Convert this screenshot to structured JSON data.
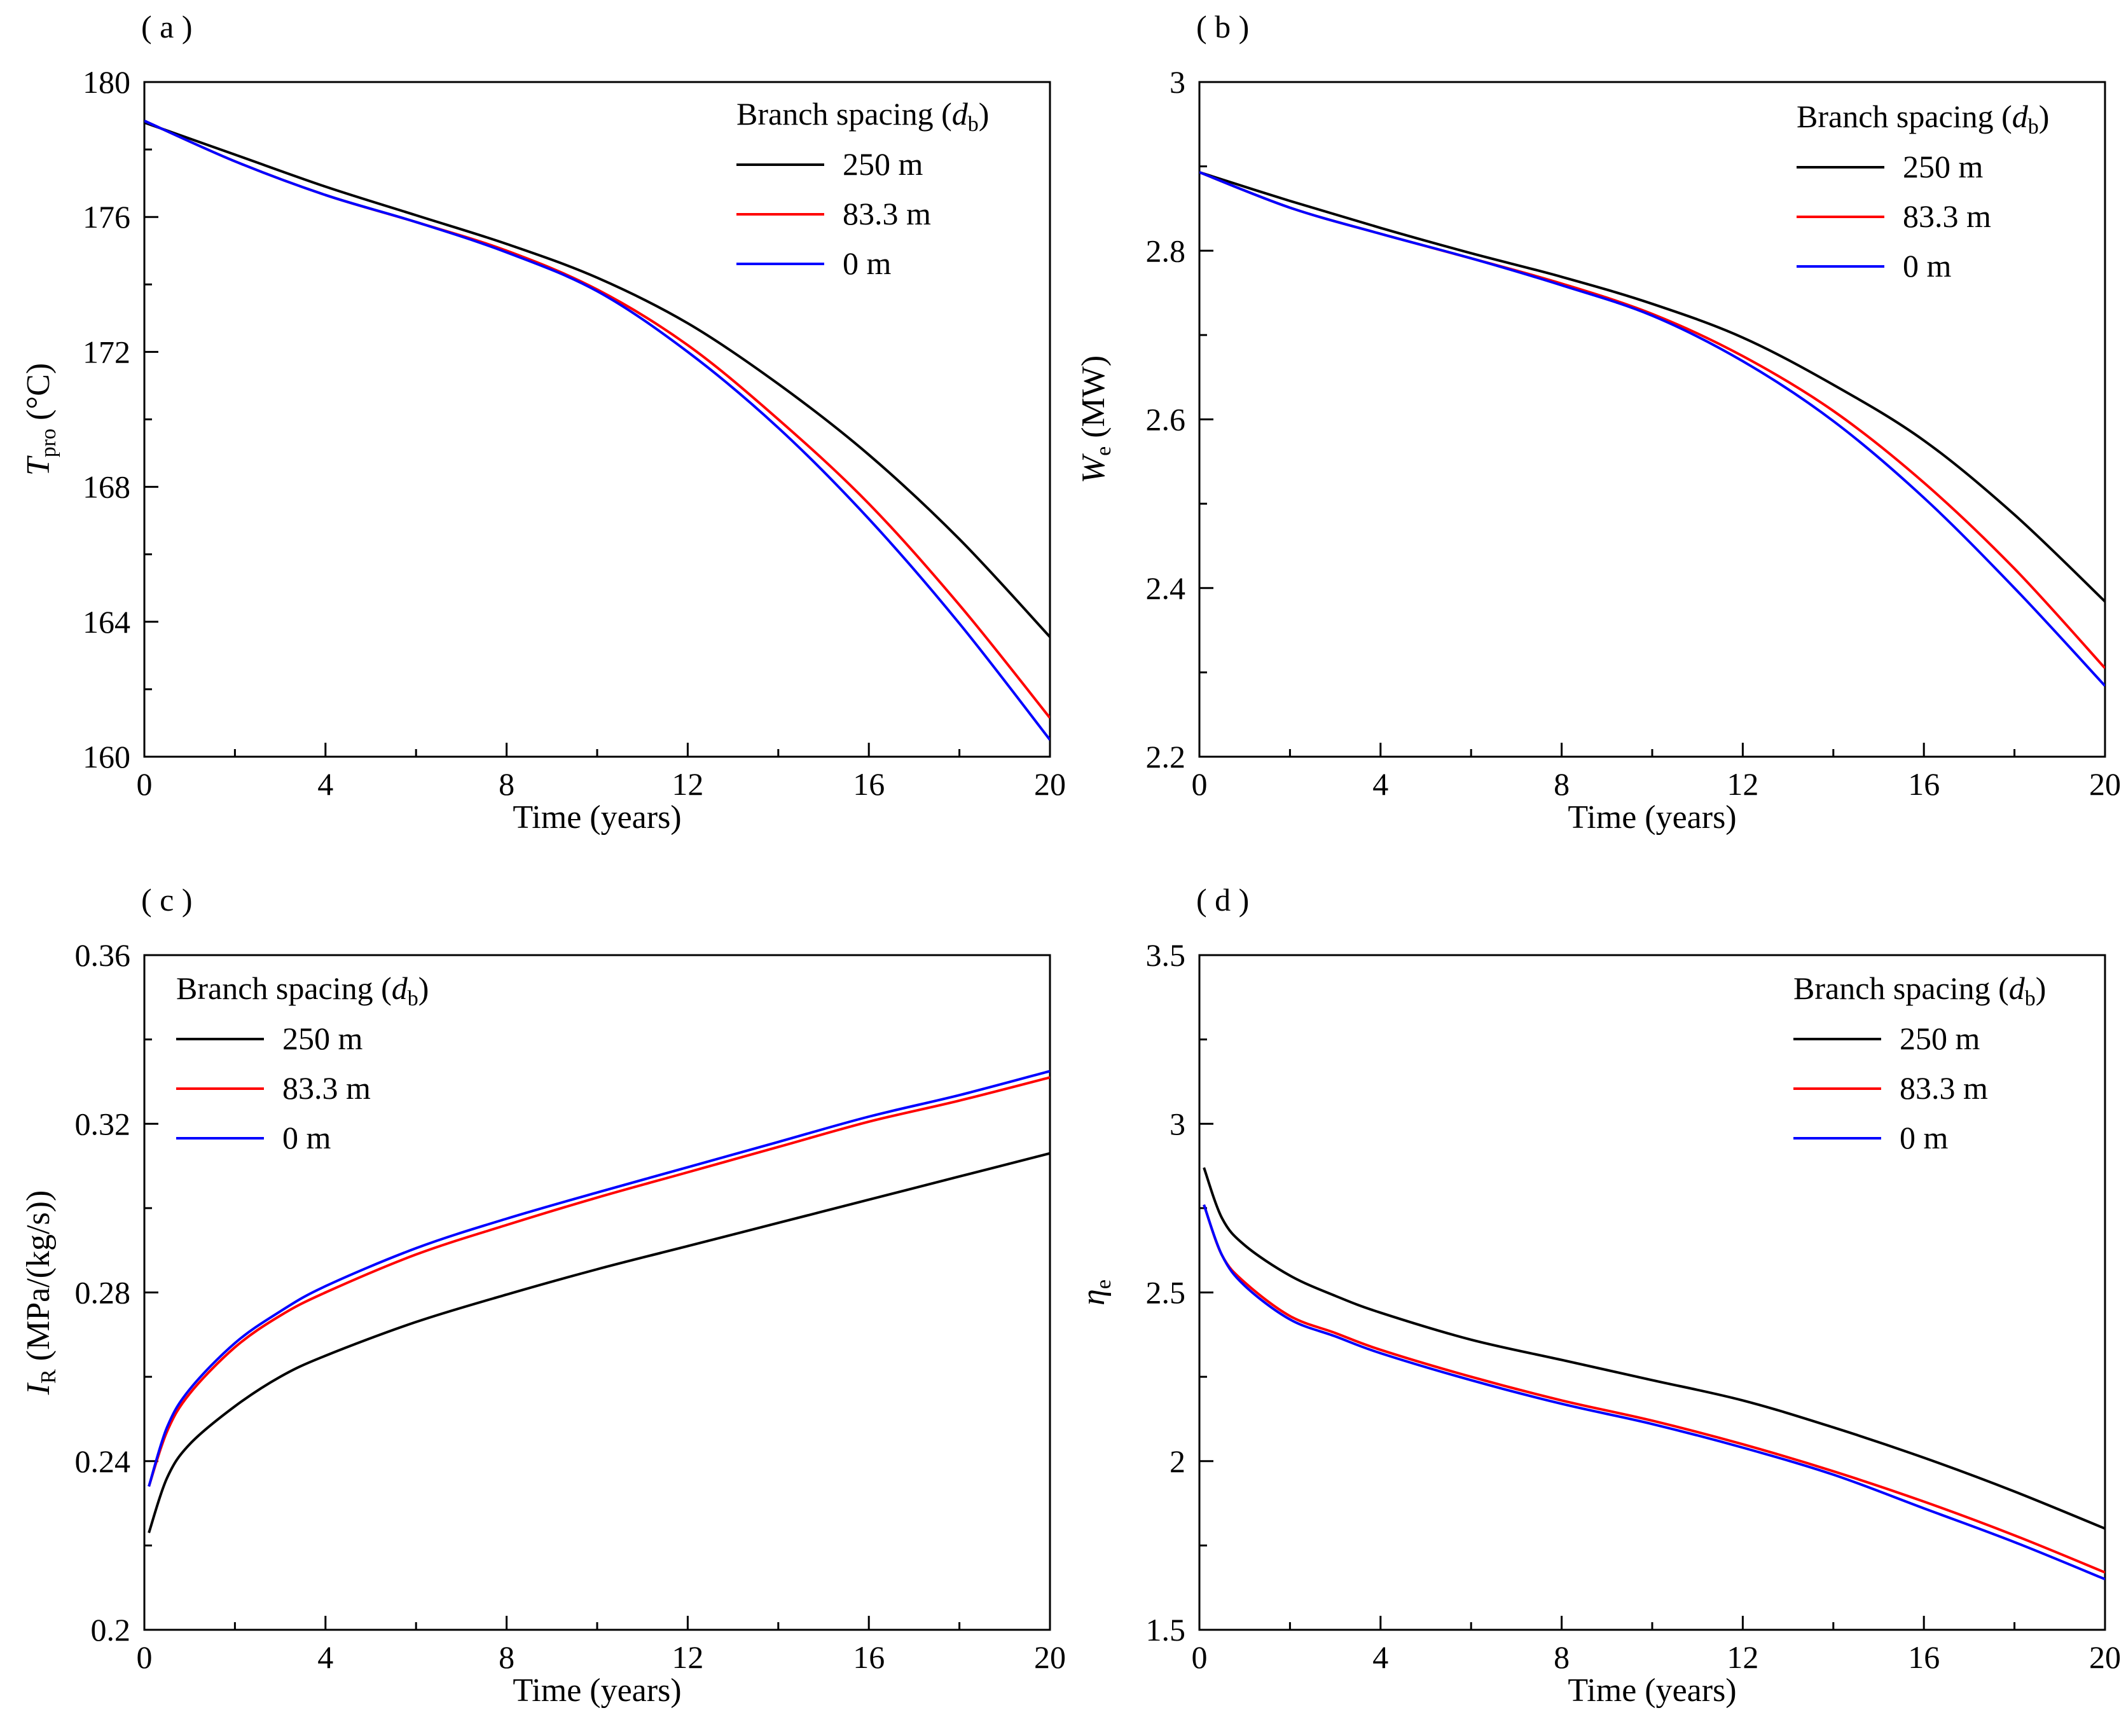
{
  "chart_data": [
    {
      "type": "line",
      "panel_label": "( a )",
      "xlabel": "Time (years)",
      "ylabel": {
        "main": "T",
        "sub": "pro",
        "unit": " (°C)"
      },
      "xlim": [
        0,
        20
      ],
      "ylim": [
        160,
        180
      ],
      "xticks": [
        0,
        4,
        8,
        12,
        16,
        20
      ],
      "xtick_labels": [
        "0",
        "4",
        "8",
        "12",
        "16",
        "20"
      ],
      "yticks": [
        160,
        164,
        168,
        172,
        176,
        180
      ],
      "ytick_labels": [
        "160",
        "164",
        "168",
        "172",
        "176",
        "180"
      ],
      "legend": {
        "title": "Branch spacing (",
        "title_var": "d",
        "title_sub": "b",
        "title_close": ")",
        "position": "top-right"
      },
      "series": [
        {
          "name": "250 m",
          "color": "#000000",
          "x": [
            0,
            2,
            4,
            6,
            8,
            10,
            12,
            14,
            16,
            18,
            20
          ],
          "y": [
            178.8,
            177.85,
            176.9,
            176.05,
            175.2,
            174.2,
            172.85,
            171.05,
            168.95,
            166.45,
            163.55
          ]
        },
        {
          "name": "83.3 m",
          "color": "#ff0000",
          "x": [
            0,
            2,
            4,
            6,
            8,
            10,
            12,
            14,
            16,
            18,
            20
          ],
          "y": [
            178.85,
            177.65,
            176.65,
            175.85,
            175.0,
            173.85,
            172.2,
            170.0,
            167.5,
            164.5,
            161.15
          ]
        },
        {
          "name": "0 m",
          "color": "#0000ff",
          "x": [
            0,
            2,
            4,
            6,
            8,
            10,
            12,
            14,
            16,
            18,
            20
          ],
          "y": [
            178.85,
            177.65,
            176.65,
            175.85,
            174.95,
            173.8,
            172.0,
            169.75,
            167.05,
            163.95,
            160.5
          ]
        }
      ]
    },
    {
      "type": "line",
      "panel_label": "( b )",
      "xlabel": "Time (years)",
      "ylabel": {
        "main": "W",
        "sub": "e",
        "unit": " (MW)"
      },
      "xlim": [
        0,
        20
      ],
      "ylim": [
        2.2,
        3.0
      ],
      "xticks": [
        0,
        4,
        8,
        12,
        16,
        20
      ],
      "xtick_labels": [
        "0",
        "4",
        "8",
        "12",
        "16",
        "20"
      ],
      "yticks": [
        2.2,
        2.4,
        2.6,
        2.8,
        3.0
      ],
      "ytick_labels": [
        "2.2",
        "2.4",
        "2.6",
        "2.8",
        "3"
      ],
      "legend": {
        "title": "Branch spacing (",
        "title_var": "d",
        "title_sub": "b",
        "title_close": ")",
        "position": "top-right"
      },
      "series": [
        {
          "name": "250 m",
          "color": "#000000",
          "x": [
            0,
            2,
            4,
            6,
            8,
            10,
            12,
            14,
            16,
            18,
            20
          ],
          "y": [
            2.893,
            2.859,
            2.827,
            2.797,
            2.769,
            2.737,
            2.697,
            2.641,
            2.575,
            2.487,
            2.384
          ]
        },
        {
          "name": "83.3 m",
          "color": "#ff0000",
          "x": [
            0,
            2,
            4,
            6,
            8,
            10,
            12,
            14,
            16,
            18,
            20
          ],
          "y": [
            2.893,
            2.851,
            2.82,
            2.791,
            2.761,
            2.725,
            2.675,
            2.61,
            2.525,
            2.423,
            2.305
          ]
        },
        {
          "name": "0 m",
          "color": "#0000ff",
          "x": [
            0,
            2,
            4,
            6,
            8,
            10,
            12,
            14,
            16,
            18,
            20
          ],
          "y": [
            2.893,
            2.851,
            2.82,
            2.791,
            2.759,
            2.723,
            2.669,
            2.598,
            2.507,
            2.4,
            2.284
          ]
        }
      ]
    },
    {
      "type": "line",
      "panel_label": "( c )",
      "xlabel": "Time (years)",
      "ylabel": {
        "main": "I",
        "sub": "R",
        "unit": " (MPa/(kg/s))"
      },
      "xlim": [
        0,
        20
      ],
      "ylim": [
        0.2,
        0.36
      ],
      "xticks": [
        0,
        4,
        8,
        12,
        16,
        20
      ],
      "xtick_labels": [
        "0",
        "4",
        "8",
        "12",
        "16",
        "20"
      ],
      "yticks": [
        0.2,
        0.24,
        0.28,
        0.32,
        0.36
      ],
      "ytick_labels": [
        "0.2",
        "0.24",
        "0.28",
        "0.32",
        "0.36"
      ],
      "legend": {
        "title": "Branch spacing (",
        "title_var": "d",
        "title_sub": "b",
        "title_close": ")",
        "position": "top-left"
      },
      "series": [
        {
          "name": "250 m",
          "color": "#000000",
          "x": [
            0.1,
            0.5,
            1,
            2,
            3,
            4,
            6,
            8,
            10,
            12,
            14,
            16,
            18,
            20
          ],
          "y": [
            0.223,
            0.236,
            0.244,
            0.253,
            0.26,
            0.265,
            0.273,
            0.2795,
            0.2855,
            0.291,
            0.2965,
            0.302,
            0.3075,
            0.313
          ]
        },
        {
          "name": "83.3 m",
          "color": "#ff0000",
          "x": [
            0.1,
            0.5,
            1,
            2,
            3,
            4,
            6,
            8,
            10,
            12,
            14,
            16,
            18,
            20
          ],
          "y": [
            0.234,
            0.247,
            0.256,
            0.267,
            0.2745,
            0.28,
            0.289,
            0.296,
            0.3025,
            0.3085,
            0.3145,
            0.3205,
            0.3255,
            0.331
          ]
        },
        {
          "name": "0 m",
          "color": "#0000ff",
          "x": [
            0.1,
            0.5,
            1,
            2,
            3,
            4,
            6,
            8,
            10,
            12,
            14,
            16,
            18,
            20
          ],
          "y": [
            0.234,
            0.248,
            0.257,
            0.268,
            0.2755,
            0.2815,
            0.2905,
            0.2975,
            0.3037,
            0.3097,
            0.3157,
            0.3217,
            0.3268,
            0.3325
          ]
        }
      ]
    },
    {
      "type": "line",
      "panel_label": "( d )",
      "xlabel": "Time (years)",
      "ylabel": {
        "main": "η",
        "sub": "e",
        "unit": ""
      },
      "xlim": [
        0,
        20
      ],
      "ylim": [
        1.5,
        3.5
      ],
      "xticks": [
        0,
        4,
        8,
        12,
        16,
        20
      ],
      "xtick_labels": [
        "0",
        "4",
        "8",
        "12",
        "16",
        "20"
      ],
      "yticks": [
        1.5,
        2.0,
        2.5,
        3.0,
        3.5
      ],
      "ytick_labels": [
        "1.5",
        "2",
        "2.5",
        "3",
        "3.5"
      ],
      "legend": {
        "title": "Branch spacing (",
        "title_var": "d",
        "title_sub": "b",
        "title_close": ")",
        "position": "top-right"
      },
      "series": [
        {
          "name": "250 m",
          "color": "#000000",
          "x": [
            0.1,
            0.5,
            1,
            2,
            3,
            4,
            6,
            8,
            10,
            12,
            14,
            16,
            18,
            20
          ],
          "y": [
            2.87,
            2.72,
            2.64,
            2.55,
            2.49,
            2.44,
            2.36,
            2.3,
            2.24,
            2.18,
            2.1,
            2.01,
            1.91,
            1.8
          ]
        },
        {
          "name": "83.3 m",
          "color": "#ff0000",
          "x": [
            0.1,
            0.5,
            1,
            2,
            3,
            4,
            6,
            8,
            10,
            12,
            14,
            16,
            18,
            20
          ],
          "y": [
            2.76,
            2.61,
            2.53,
            2.43,
            2.38,
            2.33,
            2.25,
            2.18,
            2.12,
            2.05,
            1.97,
            1.88,
            1.78,
            1.67
          ]
        },
        {
          "name": "0 m",
          "color": "#0000ff",
          "x": [
            0.1,
            0.5,
            1,
            2,
            3,
            4,
            6,
            8,
            10,
            12,
            14,
            16,
            18,
            20
          ],
          "y": [
            2.76,
            2.61,
            2.52,
            2.42,
            2.37,
            2.32,
            2.24,
            2.17,
            2.11,
            2.04,
            1.96,
            1.86,
            1.76,
            1.65
          ]
        }
      ]
    }
  ]
}
